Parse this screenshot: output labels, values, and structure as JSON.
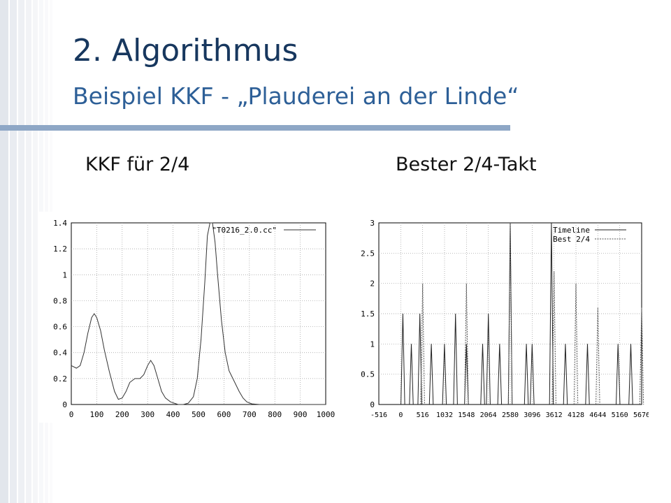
{
  "slide": {
    "title_line1": "2. Algorithmus",
    "title_line2": "Beispiel KKF - „Plauderei an der Linde“",
    "caption_left": "KKF für 2/4",
    "caption_right": "Bester 2/4-Takt",
    "colors": {
      "title": "#17375e",
      "subtitle": "#2d5f97",
      "rule": "#8ea7c6"
    }
  },
  "chart_data": [
    {
      "type": "line",
      "xlim": [
        0,
        1000
      ],
      "ylim": [
        0,
        1.4
      ],
      "x_ticks": [
        "0",
        "100",
        "200",
        "300",
        "400",
        "500",
        "600",
        "700",
        "800",
        "900",
        "1000"
      ],
      "y_ticks": [
        "0",
        "0.2",
        "0.4",
        "0.6",
        "0.8",
        "1",
        "1.2",
        "1.4"
      ],
      "grid": true,
      "legend_position": "top-right",
      "series": [
        {
          "name": "\"T0216_2.0.cc\"",
          "x": [
            0,
            20,
            35,
            50,
            65,
            80,
            90,
            100,
            115,
            130,
            150,
            170,
            185,
            200,
            215,
            230,
            250,
            270,
            285,
            300,
            312,
            325,
            340,
            355,
            370,
            390,
            420,
            440,
            460,
            480,
            495,
            510,
            525,
            535,
            545,
            555,
            565,
            575,
            590,
            605,
            620,
            640,
            660,
            675,
            690,
            710,
            740,
            800,
            900,
            1000
          ],
          "y": [
            0.3,
            0.28,
            0.3,
            0.4,
            0.55,
            0.67,
            0.7,
            0.67,
            0.57,
            0.42,
            0.25,
            0.1,
            0.04,
            0.05,
            0.1,
            0.17,
            0.2,
            0.2,
            0.23,
            0.3,
            0.34,
            0.3,
            0.2,
            0.1,
            0.05,
            0.02,
            0.0,
            0.0,
            0.01,
            0.06,
            0.2,
            0.5,
            0.95,
            1.3,
            1.42,
            1.42,
            1.25,
            1.0,
            0.65,
            0.4,
            0.26,
            0.18,
            0.1,
            0.05,
            0.02,
            0.005,
            0.0,
            0.0,
            0.0,
            0.0
          ]
        }
      ]
    },
    {
      "type": "line",
      "ylim": [
        0,
        3
      ],
      "x_ticks": [
        "-516",
        "0",
        "516",
        "1032",
        "1548",
        "2064",
        "2580",
        "3096",
        "3612",
        "4128",
        "4644",
        "5160",
        "5676"
      ],
      "y_ticks": [
        "0",
        "0.5",
        "1",
        "1.5",
        "2",
        "2.5",
        "3"
      ],
      "grid": true,
      "legend_position": "top-right",
      "series": [
        {
          "name": "Timeline",
          "peaks": [
            {
              "x": 50,
              "y": 1.5
            },
            {
              "x": 250,
              "y": 1.0
            },
            {
              "x": 450,
              "y": 1.5
            },
            {
              "x": 720,
              "y": 1.0
            },
            {
              "x": 1030,
              "y": 1.0
            },
            {
              "x": 1290,
              "y": 1.5
            },
            {
              "x": 1548,
              "y": 1.0
            },
            {
              "x": 1930,
              "y": 1.0
            },
            {
              "x": 2064,
              "y": 1.5
            },
            {
              "x": 2330,
              "y": 1.0
            },
            {
              "x": 2580,
              "y": 3.0
            },
            {
              "x": 2960,
              "y": 1.0
            },
            {
              "x": 3096,
              "y": 1.0
            },
            {
              "x": 3550,
              "y": 3.0
            },
            {
              "x": 3880,
              "y": 1.0
            },
            {
              "x": 4400,
              "y": 1.0
            },
            {
              "x": 5120,
              "y": 1.0
            },
            {
              "x": 5420,
              "y": 1.0
            }
          ]
        },
        {
          "name": "Best 2/4",
          "peaks": [
            {
              "x": 516,
              "y": 2.0
            },
            {
              "x": 1548,
              "y": 2.0
            },
            {
              "x": 2580,
              "y": 3.0
            },
            {
              "x": 3612,
              "y": 2.2
            },
            {
              "x": 4128,
              "y": 2.0
            },
            {
              "x": 4644,
              "y": 1.6
            },
            {
              "x": 5676,
              "y": 1.6
            }
          ]
        }
      ]
    }
  ]
}
